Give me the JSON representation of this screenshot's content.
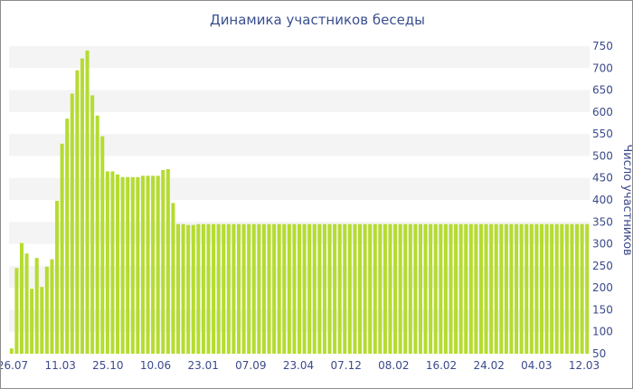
{
  "chart_data": {
    "type": "bar",
    "title": "Динамика участников беседы",
    "xlabel": "",
    "ylabel": "Число участников",
    "ylim": [
      50,
      750
    ],
    "y_ticks": [
      50,
      100,
      150,
      200,
      250,
      300,
      350,
      400,
      450,
      500,
      550,
      600,
      650,
      700,
      750
    ],
    "y_axis_position": "right",
    "x_tick_labels": [
      "26.07",
      "11.03",
      "25.10",
      "10.06",
      "23.01",
      "07.09",
      "23.04",
      "07.12",
      "08.02",
      "16.02",
      "24.02",
      "04.03",
      "12.03"
    ],
    "grid": "horizontal alternating bands",
    "colors": {
      "bar": "#b5dc30",
      "band": "#f4f4f4",
      "text": "#3b4a8a",
      "border": "#8c8c8c"
    },
    "values": [
      62,
      245,
      302,
      278,
      198,
      268,
      202,
      248,
      265,
      398,
      528,
      585,
      642,
      695,
      722,
      740,
      638,
      592,
      545,
      465,
      465,
      458,
      452,
      452,
      452,
      452,
      455,
      455,
      455,
      455,
      468,
      470,
      393,
      345,
      345,
      343,
      343,
      345,
      345,
      345,
      345,
      345,
      345,
      345,
      345,
      345,
      345,
      345,
      345,
      345,
      345,
      345,
      345,
      345,
      345,
      345,
      345,
      345,
      345,
      345,
      345,
      345,
      345,
      345,
      345,
      345,
      345,
      345,
      345,
      345,
      345,
      345,
      345,
      345,
      345,
      345,
      345,
      345,
      345,
      345,
      345,
      345,
      345,
      345,
      345,
      345,
      345,
      345,
      345,
      345,
      345,
      345,
      345,
      345,
      345,
      345,
      345,
      345,
      345,
      345,
      345,
      345,
      345,
      345,
      345,
      345,
      345,
      345,
      345,
      345,
      345,
      345,
      345,
      345,
      345
    ]
  }
}
